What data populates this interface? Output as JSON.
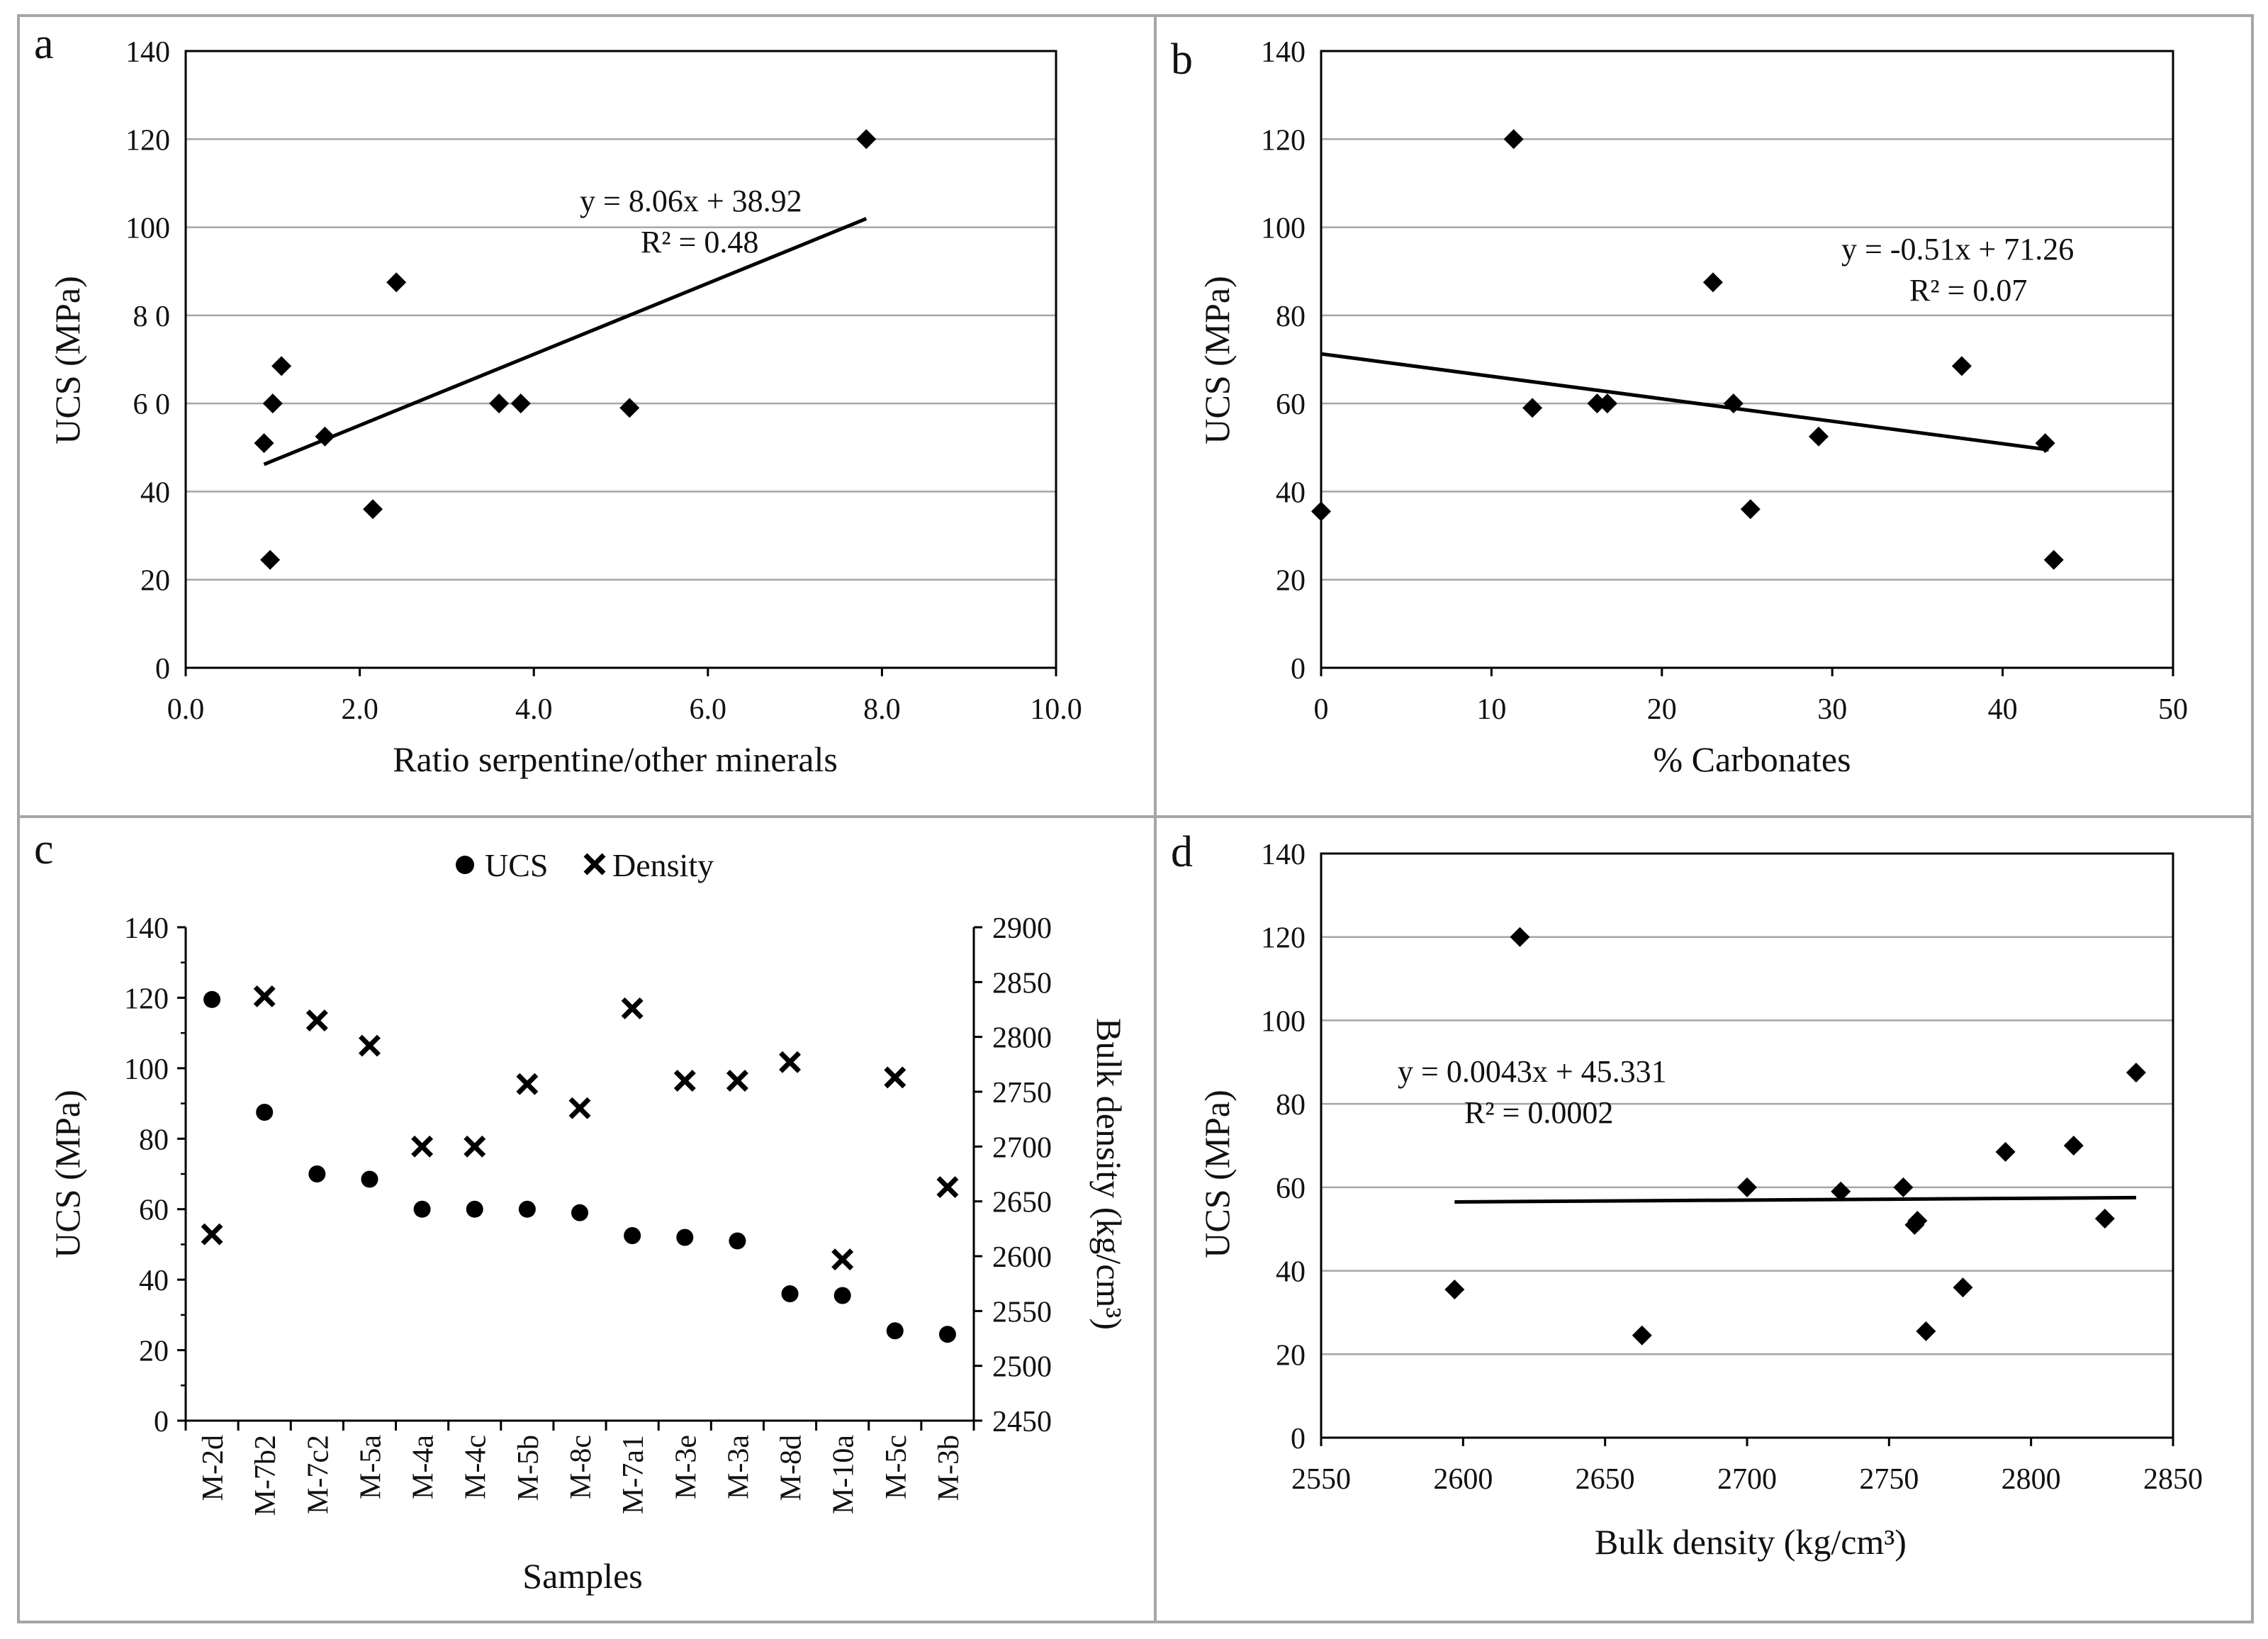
{
  "colors": {
    "frame": "#a6a6a6",
    "grid": "#a6a6a6",
    "axis": "#000000",
    "marker": "#000000"
  },
  "chart_data": [
    {
      "panel": "a",
      "type": "scatter",
      "xlabel": "Ratio serpentine/other minerals",
      "ylabel": "UCS (MPa)",
      "xlim": [
        0,
        10
      ],
      "ylim": [
        0,
        140
      ],
      "xticks": [
        0,
        2,
        4,
        6,
        8,
        10
      ],
      "xtick_labels": [
        "0.0",
        "2.0",
        "4.0",
        "6.0",
        "8.0",
        "10.0"
      ],
      "yticks": [
        0,
        20,
        40,
        60,
        80,
        100,
        120,
        140
      ],
      "ytick_labels": [
        "0",
        "20",
        "40",
        "6 0",
        "8 0",
        "100",
        "120",
        "140"
      ],
      "grid": true,
      "marker": "diamond",
      "points": [
        [
          0.9,
          51
        ],
        [
          0.97,
          24.5
        ],
        [
          1.0,
          60
        ],
        [
          1.1,
          68.5
        ],
        [
          1.6,
          52.5
        ],
        [
          2.15,
          36
        ],
        [
          2.42,
          87.5
        ],
        [
          3.6,
          60
        ],
        [
          3.85,
          60
        ],
        [
          5.1,
          59
        ],
        [
          7.82,
          120
        ]
      ],
      "trendline": {
        "x": [
          0.9,
          7.82
        ],
        "slope": 8.06,
        "intercept": 38.92
      },
      "equation": "y = 8.06x + 38.92",
      "r2": "R² = 0.48"
    },
    {
      "panel": "b",
      "type": "scatter",
      "xlabel": "% Carbonates",
      "ylabel": "UCS (MPa)",
      "xlim": [
        0,
        50
      ],
      "ylim": [
        0,
        140
      ],
      "xticks": [
        0,
        10,
        20,
        30,
        40,
        50
      ],
      "xtick_labels": [
        "0",
        "10",
        "20",
        "30",
        "40",
        "50"
      ],
      "yticks": [
        0,
        20,
        40,
        60,
        80,
        100,
        120,
        140
      ],
      "ytick_labels": [
        "0",
        "20",
        "40",
        "60",
        "80",
        "100",
        "120",
        "140"
      ],
      "grid": true,
      "marker": "diamond",
      "points": [
        [
          0,
          35.5
        ],
        [
          11.3,
          120
        ],
        [
          12.4,
          59
        ],
        [
          16.2,
          60
        ],
        [
          16.8,
          60
        ],
        [
          23,
          87.5
        ],
        [
          24.2,
          60
        ],
        [
          25.2,
          36
        ],
        [
          29.2,
          52.5
        ],
        [
          37.6,
          68.5
        ],
        [
          42.5,
          51
        ],
        [
          43,
          24.5
        ]
      ],
      "trendline": {
        "x": [
          0,
          42.7
        ],
        "slope": -0.51,
        "intercept": 71.26
      },
      "equation": "y = -0.51x + 71.26",
      "r2": "R² = 0.07"
    },
    {
      "panel": "c",
      "type": "scatter",
      "xlabel": "Samples",
      "ylabel": "UCS (MPa)",
      "y2label": "Bulk density (kg/cm³)",
      "ylim": [
        0,
        140
      ],
      "y2lim": [
        2450,
        2900
      ],
      "yticks": [
        0,
        20,
        40,
        60,
        80,
        100,
        120,
        140
      ],
      "ytick_labels": [
        "0",
        "20",
        "40",
        "60",
        "80",
        "100",
        "120",
        "140"
      ],
      "y2ticks": [
        2450,
        2500,
        2550,
        2600,
        2650,
        2700,
        2750,
        2800,
        2850,
        2900
      ],
      "y2tick_labels": [
        "2450",
        "2500",
        "2550",
        "2600",
        "2650",
        "2700",
        "2750",
        "2800",
        "2850",
        "2900"
      ],
      "grid": false,
      "legend": [
        "UCS",
        "Density"
      ],
      "categories": [
        "M-2d",
        "M-7b2",
        "M-7c2",
        "M-5a",
        "M-4a",
        "M-4c",
        "M-5b",
        "M-8c",
        "M-7a1",
        "M-3e",
        "M-3a",
        "M-8d",
        "M-10a",
        "M-5c",
        "M-3b"
      ],
      "series": [
        {
          "name": "UCS",
          "marker": "circle",
          "axis": "left",
          "values": [
            119.5,
            87.5,
            70,
            68.5,
            60,
            60,
            60,
            59,
            52.5,
            52,
            51,
            36,
            35.5,
            25.5,
            24.5
          ]
        },
        {
          "name": "Density",
          "marker": "x",
          "axis": "right",
          "values": [
            2620,
            2837,
            2815,
            2792,
            2700,
            2700,
            2757,
            2735,
            2826,
            2760,
            2760,
            2777,
            2597,
            2763,
            2663
          ]
        }
      ]
    },
    {
      "panel": "d",
      "type": "scatter",
      "xlabel": "Bulk density (kg/cm³)",
      "ylabel": "UCS (MPa)",
      "xlim": [
        2550,
        2850
      ],
      "ylim": [
        0,
        140
      ],
      "xticks": [
        2550,
        2600,
        2650,
        2700,
        2750,
        2800,
        2850
      ],
      "xtick_labels": [
        "2550",
        "2600",
        "2650",
        "2700",
        "2750",
        "2800",
        "2850"
      ],
      "yticks": [
        0,
        20,
        40,
        60,
        80,
        100,
        120,
        140
      ],
      "ytick_labels": [
        "0",
        "20",
        "40",
        "60",
        "80",
        "100",
        "120",
        "140"
      ],
      "grid": true,
      "marker": "diamond",
      "points": [
        [
          2597,
          35.5
        ],
        [
          2620,
          120
        ],
        [
          2663,
          24.5
        ],
        [
          2700,
          60
        ],
        [
          2733,
          59
        ],
        [
          2755,
          60
        ],
        [
          2759,
          51
        ],
        [
          2760,
          52
        ],
        [
          2763,
          25.5
        ],
        [
          2776,
          36
        ],
        [
          2791,
          68.5
        ],
        [
          2815,
          70
        ],
        [
          2826,
          52.5
        ],
        [
          2837,
          87.5
        ]
      ],
      "trendline": {
        "x": [
          2597,
          2837
        ],
        "slope": 0.0043,
        "intercept": 45.331
      },
      "equation": "y = 0.0043x + 45.331",
      "r2": "R² = 0.0002"
    }
  ]
}
